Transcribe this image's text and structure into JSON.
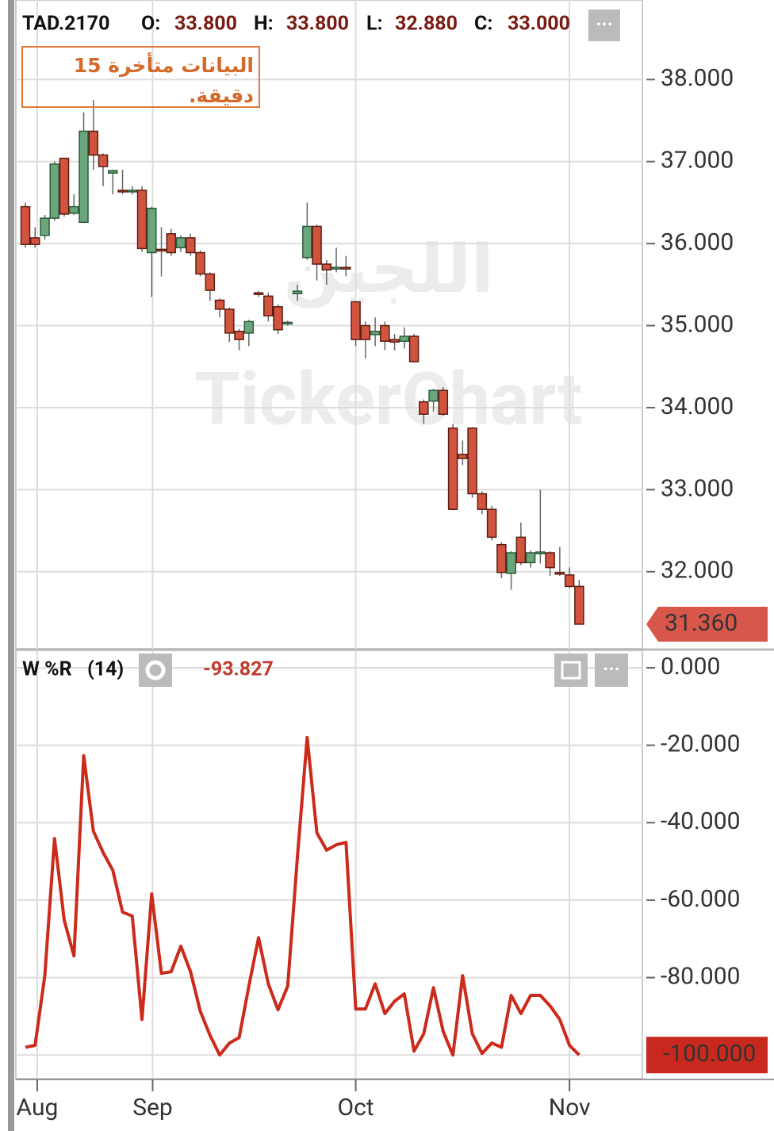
{
  "chart_data": [
    {
      "type": "candlestick",
      "title": "TAD.2170",
      "ohlc_labels": [
        {
          "name": "O:",
          "value": "33.800"
        },
        {
          "name": "H:",
          "value": "33.800"
        },
        {
          "name": "L:",
          "value": "32.880"
        },
        {
          "name": "C:",
          "value": "33.000"
        }
      ],
      "annotation": "البيانات متأخرة 15 دقيقة.",
      "watermark": "TickerChart",
      "watermark_ar": "اللجين",
      "open": [
        36.45,
        36.07,
        36.1,
        36.31,
        37.04,
        36.37,
        36.26,
        37.37,
        37.08,
        36.86,
        36.65,
        36.64,
        36.65,
        35.89,
        35.93,
        36.12,
        35.95,
        36.07,
        35.89,
        35.63,
        35.31,
        35.2,
        34.93,
        34.91,
        35.4,
        35.36,
        35.23,
        35.03,
        35.39,
        35.83,
        36.21,
        35.75,
        35.7,
        35.71,
        35.29,
        35.0,
        34.89,
        35.0,
        34.83,
        34.81,
        34.87,
        34.07,
        34.08,
        34.21,
        33.75,
        33.43,
        33.75,
        32.95,
        32.76,
        32.33,
        31.98,
        32.42,
        32.11,
        32.22,
        32.23,
        31.99,
        31.96,
        31.82
      ],
      "high": [
        36.5,
        36.2,
        36.35,
        37.0,
        37.05,
        36.6,
        37.6,
        37.75,
        37.1,
        36.9,
        36.9,
        36.7,
        36.7,
        36.45,
        36.2,
        36.18,
        36.1,
        36.12,
        35.92,
        35.65,
        35.33,
        35.22,
        34.96,
        35.07,
        35.42,
        35.4,
        35.26,
        35.06,
        35.5,
        36.5,
        36.23,
        35.8,
        35.95,
        35.85,
        35.3,
        35.05,
        35.1,
        35.05,
        34.9,
        34.98,
        34.9,
        34.1,
        34.23,
        34.25,
        33.8,
        33.6,
        33.76,
        32.98,
        32.8,
        32.36,
        32.25,
        32.6,
        32.26,
        33.0,
        32.25,
        32.3,
        32.05,
        31.9
      ],
      "low": [
        35.95,
        35.95,
        36.05,
        36.28,
        36.33,
        36.35,
        36.25,
        36.9,
        36.7,
        36.6,
        36.6,
        36.6,
        35.9,
        35.35,
        35.6,
        35.85,
        35.9,
        35.85,
        35.6,
        35.3,
        35.1,
        34.8,
        34.7,
        34.75,
        35.35,
        35.05,
        34.9,
        35.0,
        35.3,
        35.8,
        35.55,
        35.5,
        35.65,
        35.6,
        34.75,
        34.6,
        34.75,
        34.7,
        34.7,
        34.72,
        34.55,
        33.8,
        33.95,
        33.9,
        32.75,
        33.3,
        32.9,
        32.7,
        32.38,
        31.92,
        31.78,
        32.08,
        32.05,
        32.1,
        31.95,
        31.95,
        31.8,
        31.36
      ],
      "close": [
        35.99,
        35.99,
        36.31,
        36.97,
        36.36,
        36.45,
        37.37,
        37.08,
        36.94,
        36.89,
        36.64,
        36.65,
        35.94,
        36.43,
        35.92,
        35.89,
        36.07,
        35.89,
        35.63,
        35.43,
        35.2,
        34.91,
        34.83,
        35.05,
        35.39,
        35.12,
        34.95,
        35.04,
        35.42,
        36.21,
        35.75,
        35.68,
        35.71,
        35.7,
        34.83,
        34.83,
        34.93,
        34.81,
        34.8,
        34.87,
        34.56,
        33.92,
        34.21,
        33.92,
        32.76,
        33.38,
        32.95,
        32.76,
        32.42,
        31.99,
        32.23,
        32.11,
        32.23,
        32.24,
        32.05,
        31.98,
        31.82,
        31.36
      ],
      "up_color": "#6aa57b",
      "down_color": "#d2533f",
      "last_value_label": "31.360",
      "last_label_color": "#d9574a",
      "ylim": [
        31.06,
        38.97
      ],
      "yticks": [
        {
          "value": 32,
          "label": "32.000"
        },
        {
          "value": 33,
          "label": "33.000"
        },
        {
          "value": 34,
          "label": "34.000"
        },
        {
          "value": 35,
          "label": "35.000"
        },
        {
          "value": 36,
          "label": "36.000"
        },
        {
          "value": 37,
          "label": "37.000"
        },
        {
          "value": 38,
          "label": "38.000"
        }
      ],
      "grid": true
    },
    {
      "type": "line",
      "title": "W %R",
      "subtitle": "(14)",
      "current_value_label": "-93.827",
      "series": [
        {
          "name": "W %R",
          "color": "#cc2a1a",
          "values": [
            -98,
            -97.5,
            -79.5,
            -44.1,
            -65.2,
            -74.4,
            -22.7,
            -42.2,
            -47.7,
            -52.3,
            -63.1,
            -64.1,
            -90.8,
            -58.4,
            -78.9,
            -78.5,
            -71.9,
            -78.5,
            -88.7,
            -94.9,
            -100,
            -96.9,
            -95.5,
            -82.2,
            -69.7,
            -81.6,
            -88.3,
            -82.2,
            -48.8,
            -18,
            -42.6,
            -47.1,
            -45.7,
            -45.1,
            -88.1,
            -88.1,
            -81.6,
            -89.3,
            -86.1,
            -84.2,
            -99,
            -94.5,
            -82.6,
            -93.9,
            -100,
            -79.5,
            -94.5,
            -99.6,
            -96.9,
            -98,
            -84.6,
            -89.3,
            -84.6,
            -84.6,
            -87.3,
            -90.8,
            -97.5,
            -100
          ]
        }
      ],
      "last_value_label": "-100.000",
      "last_label_color": "#c8281e",
      "ylim": [
        -106.1,
        4.5
      ],
      "yticks": [
        {
          "value": -100,
          "label": "-100.000"
        },
        {
          "value": -80,
          "label": "-80.000"
        },
        {
          "value": -60,
          "label": "-60.000"
        },
        {
          "value": -40,
          "label": "-40.000"
        },
        {
          "value": -20,
          "label": "-20.000"
        },
        {
          "value": 0,
          "label": "0.000"
        }
      ],
      "xlim": [
        -0.98,
        63.5
      ],
      "xticks": [
        {
          "value": 1.22,
          "label": "Aug"
        },
        {
          "value": 13.1,
          "label": "Sep"
        },
        {
          "value": 34.0,
          "label": "Oct"
        },
        {
          "value": 56.0,
          "label": "Nov"
        }
      ],
      "grid": true
    }
  ]
}
